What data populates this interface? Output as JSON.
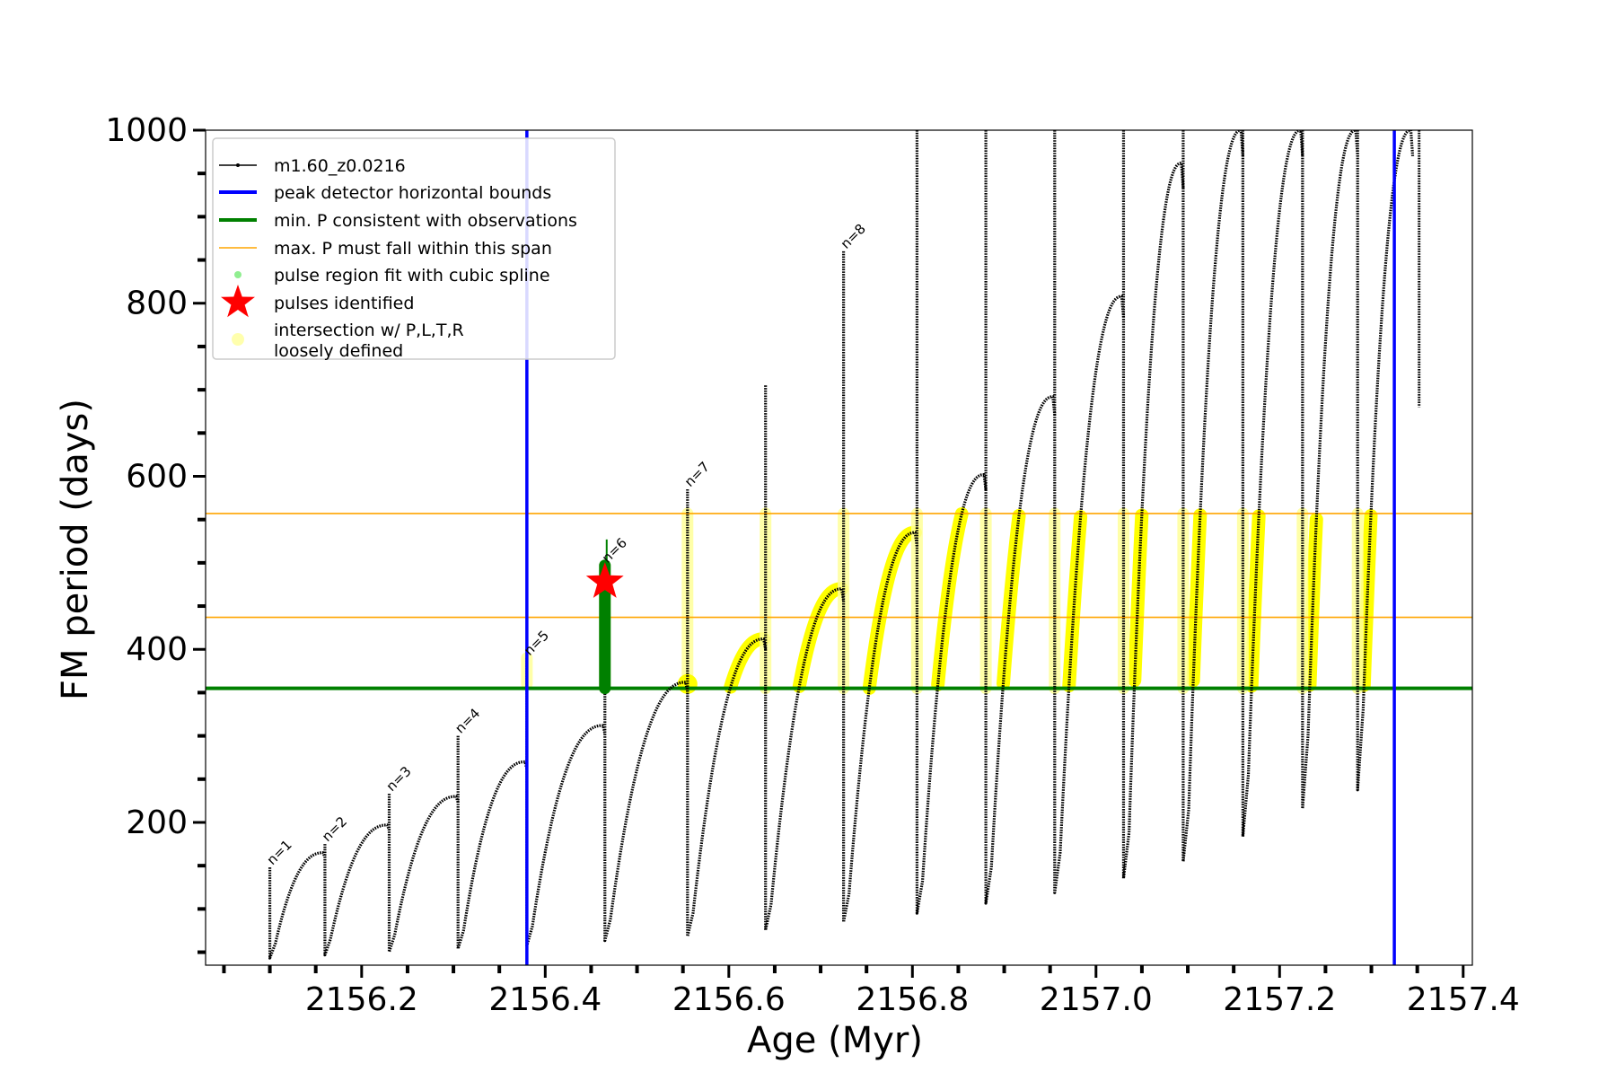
{
  "chart_data": {
    "type": "line",
    "title": "",
    "xlabel": "Age (Myr)",
    "ylabel": "FM period (days)",
    "xlim": [
      2156.03,
      2157.41
    ],
    "ylim": [
      35,
      1000
    ],
    "x_ticks": [
      2156.2,
      2156.4,
      2156.6,
      2156.8,
      2157.0,
      2157.2,
      2157.4
    ],
    "x_tick_labels": [
      "2156.2",
      "2156.4",
      "2156.6",
      "2156.8",
      "2157.0",
      "2157.2",
      "2157.4"
    ],
    "y_ticks": [
      200,
      400,
      600,
      800,
      1000
    ],
    "y_tick_labels": [
      "200",
      "400",
      "600",
      "800",
      "1000"
    ],
    "grid": false,
    "legend_position": "top-left",
    "colors": {
      "model": "#000000",
      "bounds": "#0000ff",
      "min_p": "#008000",
      "max_p": "#ffa500",
      "spline": "#90ee90",
      "star": "#ff0000",
      "intersection": "#ffff00"
    },
    "legend": [
      {
        "label": "m1.60_z0.0216",
        "kind": "marker-line",
        "color": "#000000"
      },
      {
        "label": "peak detector horizontal bounds",
        "kind": "line",
        "color": "#0000ff"
      },
      {
        "label": "min. P consistent with observations",
        "kind": "line",
        "color": "#008000"
      },
      {
        "label": "max. P must fall within this span",
        "kind": "thin-line",
        "color": "#ffa500"
      },
      {
        "label": "pulse region fit with cubic spline",
        "kind": "dot",
        "color": "#90ee90"
      },
      {
        "label": "pulses identified",
        "kind": "star",
        "color": "#ff0000"
      },
      {
        "label": "intersection w/ P,L,T,R\nloosely defined",
        "kind": "faint-dot",
        "color": "#ffff99"
      }
    ],
    "peak_detector_bounds": [
      2156.38,
      2157.325
    ],
    "min_period": 355,
    "max_period_span": [
      437,
      557
    ],
    "pulses": [
      {
        "start": 2156.1,
        "end": 2156.16,
        "valley": 60,
        "peak": 165,
        "spike": 148,
        "label": "n=1"
      },
      {
        "start": 2156.16,
        "end": 2156.23,
        "valley": 65,
        "peak": 197,
        "spike": 175,
        "label": "n=2"
      },
      {
        "start": 2156.23,
        "end": 2156.305,
        "valley": 70,
        "peak": 230,
        "spike": 233,
        "label": "n=3"
      },
      {
        "start": 2156.305,
        "end": 2156.38,
        "valley": 75,
        "peak": 270,
        "spike": 300,
        "label": "n=4"
      },
      {
        "start": 2156.38,
        "end": 2156.465,
        "valley": 80,
        "peak": 312,
        "spike": 390,
        "label": "n=5"
      },
      {
        "start": 2156.465,
        "end": 2156.555,
        "valley": 88,
        "peak": 362,
        "spike": 497,
        "label": "n=6"
      },
      {
        "start": 2156.555,
        "end": 2156.64,
        "valley": 95,
        "peak": 412,
        "spike": 585,
        "label": "n=7"
      },
      {
        "start": 2156.64,
        "end": 2156.725,
        "valley": 105,
        "peak": 470,
        "spike": 705,
        "label": ""
      },
      {
        "start": 2156.725,
        "end": 2156.805,
        "valley": 118,
        "peak": 535,
        "spike": 860,
        "label": "n=8"
      },
      {
        "start": 2156.805,
        "end": 2156.88,
        "valley": 132,
        "peak": 602,
        "spike": 1000,
        "label": ""
      },
      {
        "start": 2156.88,
        "end": 2156.955,
        "valley": 148,
        "peak": 692,
        "spike": 1000,
        "label": ""
      },
      {
        "start": 2156.955,
        "end": 2157.03,
        "valley": 165,
        "peak": 808,
        "spike": 1000,
        "label": ""
      },
      {
        "start": 2157.03,
        "end": 2157.095,
        "valley": 188,
        "peak": 962,
        "spike": 1000,
        "label": ""
      },
      {
        "start": 2157.095,
        "end": 2157.16,
        "valley": 215,
        "peak": 1000,
        "spike": 1000,
        "label": ""
      },
      {
        "start": 2157.16,
        "end": 2157.225,
        "valley": 255,
        "peak": 1000,
        "spike": 1000,
        "label": ""
      },
      {
        "start": 2157.225,
        "end": 2157.285,
        "valley": 300,
        "peak": 1000,
        "spike": 1000,
        "label": ""
      },
      {
        "start": 2157.285,
        "end": 2157.345,
        "valley": 330,
        "peak": 1000,
        "spike": 1000,
        "label": ""
      }
    ],
    "identified_pulse": {
      "x": 2156.465,
      "y": 478,
      "label": "n=6"
    }
  }
}
